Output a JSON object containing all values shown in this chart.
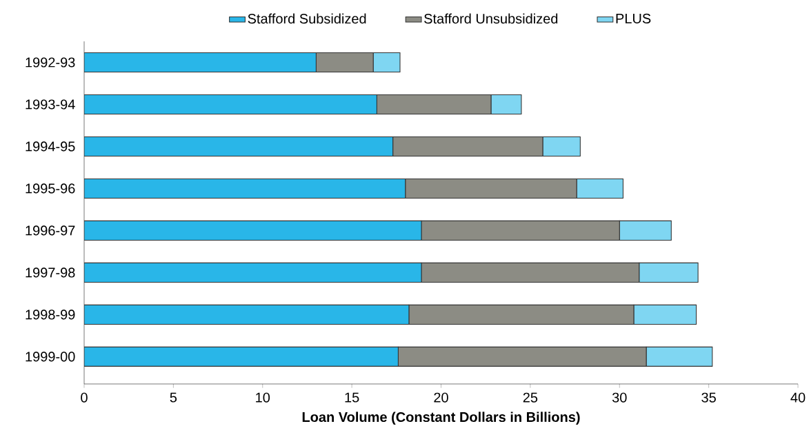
{
  "chart_data": {
    "type": "bar",
    "orientation": "horizontal",
    "stacked": true,
    "xlabel": "Loan Volume (Constant Dollars in Billions)",
    "categories": [
      "1992-93",
      "1993-94",
      "1994-95",
      "1995-96",
      "1996-97",
      "1997-98",
      "1998-99",
      "1999-00"
    ],
    "series": [
      {
        "name": "Stafford Subsidized",
        "color": "#29b6e8",
        "values": [
          13.0,
          16.4,
          17.3,
          18.0,
          18.9,
          18.9,
          18.2,
          17.6
        ]
      },
      {
        "name": "Stafford Unsubsidized",
        "color": "#8c8c84",
        "values": [
          3.2,
          6.4,
          8.4,
          9.6,
          11.1,
          12.2,
          12.6,
          13.9
        ]
      },
      {
        "name": "PLUS",
        "color": "#7fd6f2",
        "values": [
          1.5,
          1.7,
          2.1,
          2.6,
          2.9,
          3.3,
          3.5,
          3.7
        ]
      }
    ],
    "xlim": [
      0,
      40
    ],
    "xticks": [
      0,
      5,
      10,
      15,
      20,
      25,
      30,
      35,
      40
    ],
    "legend": "top",
    "grid": false
  }
}
